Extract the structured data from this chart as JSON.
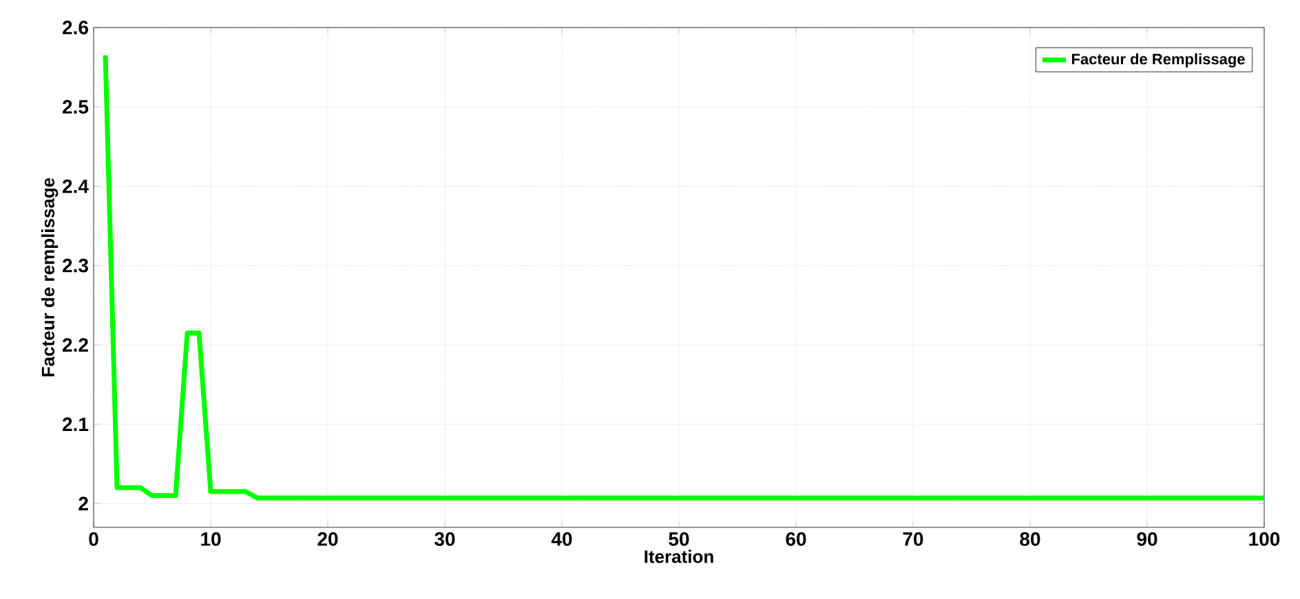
{
  "chart_data": {
    "type": "line",
    "xlabel": "Iteration",
    "ylabel": "Facteur de remplissage",
    "x": [
      1,
      2,
      3,
      4,
      5,
      6,
      7,
      8,
      9,
      10,
      11,
      12,
      13,
      14,
      15,
      100
    ],
    "series": [
      {
        "name": "Facteur de Remplissage",
        "color": "#00ff00",
        "values": [
          2.565,
          2.02,
          2.02,
          2.02,
          2.01,
          2.01,
          2.01,
          2.215,
          2.215,
          2.015,
          2.015,
          2.015,
          2.015,
          2.007,
          2.007,
          2.007
        ]
      }
    ],
    "xlim": [
      0,
      100
    ],
    "ylim": [
      1.97,
      2.6
    ],
    "xticks": [
      0,
      10,
      20,
      30,
      40,
      50,
      60,
      70,
      80,
      90,
      100
    ],
    "yticks": [
      2,
      2.1,
      2.2,
      2.3,
      2.4,
      2.5,
      2.6
    ],
    "grid": true,
    "legend": "top right",
    "marker": "none",
    "line_style": "solid"
  }
}
